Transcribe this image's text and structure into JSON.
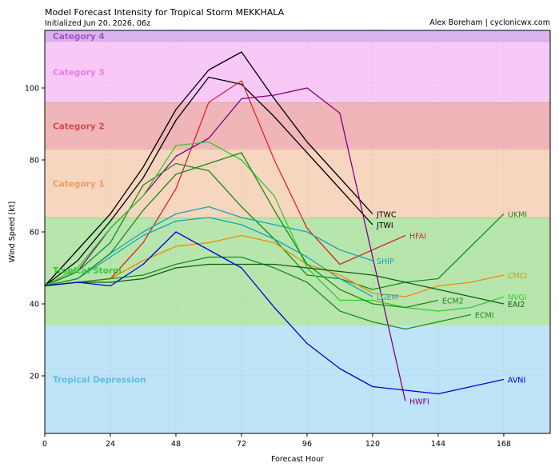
{
  "header": {
    "title": "Model Forecast Intensity for Tropical Storm MEKKHALA",
    "subtitle": "Initialized Jun 20, 2026, 06z",
    "credit": "Alex Boreham | cyclonicwx.com"
  },
  "chart_data": {
    "type": "line",
    "title": "Model Forecast Intensity for Tropical Storm MEKKHALA",
    "xlabel": "Forecast Hour",
    "ylabel": "Wind Speed [kt]",
    "xlim": [
      0,
      185
    ],
    "ylim": [
      4,
      116
    ],
    "xticks": [
      0,
      24,
      48,
      72,
      96,
      120,
      144,
      168
    ],
    "yticks": [
      20,
      40,
      60,
      80,
      100
    ],
    "grid": true,
    "bands": [
      {
        "label": "Tropical Depression",
        "from": 4,
        "to": 34,
        "fill": "#bfe3f7",
        "text_color": "#5bbfe6",
        "edge": "#bfe3f7"
      },
      {
        "label": "Tropical Storm",
        "from": 34,
        "to": 64,
        "fill": "#b7e6ad",
        "text_color": "#3fc43a",
        "edge": "#6ccf5f"
      },
      {
        "label": "Category 1",
        "from": 64,
        "to": 83,
        "fill": "#f7d6bf",
        "text_color": "#f09a5a",
        "edge": "#f0b48a"
      },
      {
        "label": "Category 2",
        "from": 83,
        "to": 96,
        "fill": "#efb5b8",
        "text_color": "#d8494e",
        "edge": "#d98a8a"
      },
      {
        "label": "Category 3",
        "from": 96,
        "to": 113,
        "fill": "#f8c9f7",
        "text_color": "#ee7ae8",
        "edge": "#d98ad8"
      },
      {
        "label": "Category 4",
        "from": 113,
        "to": 116,
        "fill": "#d8b5ec",
        "text_color": "#a64fd0",
        "edge": "#b68cd0"
      }
    ],
    "series": [
      {
        "name": "JTWC",
        "color": "#000000",
        "x": [
          0,
          12,
          24,
          36,
          48,
          60,
          72,
          84,
          96,
          108,
          120
        ],
        "y": [
          45,
          55,
          65,
          78,
          94,
          105,
          110,
          97,
          85,
          75,
          65
        ]
      },
      {
        "name": "JTWI",
        "color": "#000000",
        "x": [
          0,
          12,
          24,
          36,
          48,
          60,
          72,
          84,
          96,
          108,
          120
        ],
        "y": [
          45,
          52,
          63,
          75,
          91,
          103,
          101,
          92,
          82,
          72,
          62
        ]
      },
      {
        "name": "HFAI",
        "color": "#d62728",
        "x": [
          0,
          12,
          24,
          36,
          48,
          60,
          72,
          84,
          96,
          108,
          120,
          132
        ],
        "y": [
          45,
          46,
          47,
          57,
          72,
          96,
          102,
          80,
          61,
          51,
          55,
          59
        ]
      },
      {
        "name": "HWFI",
        "color": "#800080",
        "x": [
          0,
          12,
          24,
          36,
          48,
          60,
          72,
          84,
          96,
          108,
          132
        ],
        "y": [
          45,
          49,
          61,
          70,
          81,
          86,
          97,
          98,
          100,
          93,
          13
        ]
      },
      {
        "name": "UKMI",
        "color": "#1a8c1a",
        "x": [
          0,
          12,
          24,
          36,
          48,
          60,
          72,
          84,
          96,
          108,
          120,
          132,
          144,
          168
        ],
        "y": [
          45,
          49,
          57,
          73,
          79,
          77,
          67,
          58,
          48,
          47,
          44,
          46,
          47,
          65
        ]
      },
      {
        "name": "SHIP",
        "color": "#1aa5b0",
        "x": [
          0,
          12,
          24,
          36,
          48,
          60,
          72,
          84,
          96,
          108,
          120
        ],
        "y": [
          45,
          47,
          54,
          60,
          65,
          67,
          64,
          62,
          60,
          55,
          52
        ]
      },
      {
        "name": "LGEM",
        "color": "#1aa5b0",
        "x": [
          0,
          12,
          24,
          36,
          48,
          60,
          72,
          84,
          96,
          108,
          120
        ],
        "y": [
          45,
          47,
          53,
          59,
          63,
          64,
          62,
          58,
          53,
          47,
          42
        ]
      },
      {
        "name": "CMCI",
        "color": "#f08c00",
        "x": [
          0,
          12,
          24,
          36,
          48,
          60,
          72,
          84,
          96,
          108,
          120,
          132,
          144,
          156,
          168
        ],
        "y": [
          45,
          46,
          47,
          52,
          56,
          57,
          59,
          57,
          51,
          48,
          43,
          42,
          45,
          46,
          48
        ]
      },
      {
        "name": "NVGI",
        "color": "#33cc33",
        "x": [
          0,
          12,
          24,
          36,
          48,
          60,
          72,
          84,
          96,
          108,
          120,
          132,
          144,
          156,
          168
        ],
        "y": [
          45,
          50,
          61,
          70,
          84,
          85,
          80,
          70,
          50,
          41,
          41,
          39,
          38,
          39,
          42
        ]
      },
      {
        "name": "ECM2",
        "color": "#1a8c1a",
        "x": [
          0,
          12,
          24,
          36,
          48,
          60,
          72,
          84,
          96,
          108,
          120,
          132,
          144
        ],
        "y": [
          45,
          47,
          54,
          66,
          76,
          79,
          82,
          66,
          51,
          44,
          40,
          39,
          41
        ]
      },
      {
        "name": "ECMI",
        "color": "#1a8c1a",
        "x": [
          0,
          12,
          24,
          36,
          48,
          60,
          72,
          84,
          96,
          108,
          120,
          132,
          144,
          156
        ],
        "y": [
          45,
          46,
          47,
          48,
          51,
          53,
          53,
          50,
          46,
          38,
          35,
          33,
          35,
          37
        ]
      },
      {
        "name": "EAI2",
        "color": "#0b5e0b",
        "x": [
          0,
          12,
          24,
          36,
          48,
          60,
          72,
          84,
          96,
          108,
          120,
          132,
          144,
          156,
          168
        ],
        "y": [
          45,
          46,
          46,
          47,
          50,
          51,
          51,
          51,
          50,
          49,
          48,
          46,
          44,
          42,
          40
        ]
      },
      {
        "name": "AVNI",
        "color": "#0000dd",
        "x": [
          0,
          12,
          24,
          36,
          48,
          60,
          72,
          84,
          96,
          108,
          120,
          132,
          144,
          156,
          168
        ],
        "y": [
          45,
          46,
          45,
          51,
          60,
          55,
          50,
          39,
          29,
          22,
          17,
          16,
          15,
          17,
          19
        ]
      }
    ],
    "label_positions_note": ""
  }
}
